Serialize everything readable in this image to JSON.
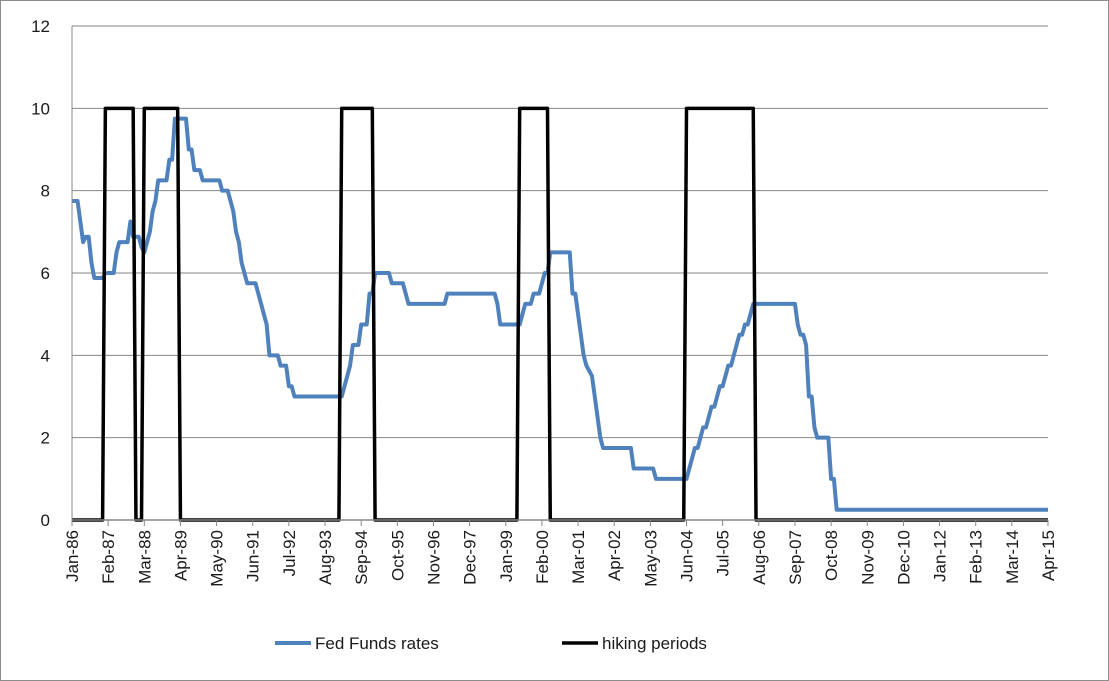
{
  "chart_data": {
    "type": "line",
    "title": "",
    "xlabel": "",
    "ylabel": "",
    "ylim": [
      0,
      12
    ],
    "yticks": [
      0,
      2,
      4,
      6,
      8,
      10,
      12
    ],
    "x_start": "Jan-86",
    "x_end": "Apr-15",
    "xticks": [
      "Jan-86",
      "Feb-87",
      "Mar-88",
      "Apr-89",
      "May-90",
      "Jun-91",
      "Jul-92",
      "Aug-93",
      "Sep-94",
      "Oct-95",
      "Nov-96",
      "Dec-97",
      "Jan-99",
      "Feb-00",
      "Mar-01",
      "Apr-02",
      "May-03",
      "Jun-04",
      "Jul-05",
      "Aug-06",
      "Sep-07",
      "Oct-08",
      "Nov-09",
      "Dec-10",
      "Jan-12",
      "Feb-13",
      "Mar-14",
      "Apr-15"
    ],
    "grid": "horizontal",
    "legend_position": "bottom",
    "series": [
      {
        "name": "Fed Funds rates",
        "color": "#4f81bd",
        "points": [
          [
            "Jan-86",
            7.75
          ],
          [
            "Mar-86",
            7.75
          ],
          [
            "Apr-86",
            7.25
          ],
          [
            "May-86",
            6.75
          ],
          [
            "Jun-86",
            6.88
          ],
          [
            "Jul-86",
            6.88
          ],
          [
            "Aug-86",
            6.25
          ],
          [
            "Sep-86",
            5.88
          ],
          [
            "Dec-86",
            5.88
          ],
          [
            "Jan-87",
            6.0
          ],
          [
            "Apr-87",
            6.0
          ],
          [
            "May-87",
            6.5
          ],
          [
            "Jun-87",
            6.75
          ],
          [
            "Sep-87",
            6.75
          ],
          [
            "Oct-87",
            7.25
          ],
          [
            "Nov-87",
            6.88
          ],
          [
            "Jan-88",
            6.88
          ],
          [
            "Feb-88",
            6.63
          ],
          [
            "Mar-88",
            6.5
          ],
          [
            "Apr-88",
            6.75
          ],
          [
            "May-88",
            7.0
          ],
          [
            "Jun-88",
            7.5
          ],
          [
            "Jul-88",
            7.75
          ],
          [
            "Aug-88",
            8.25
          ],
          [
            "Nov-88",
            8.25
          ],
          [
            "Dec-88",
            8.75
          ],
          [
            "Jan-89",
            8.75
          ],
          [
            "Feb-89",
            9.75
          ],
          [
            "Jun-89",
            9.75
          ],
          [
            "Jul-89",
            9.0
          ],
          [
            "Aug-89",
            9.0
          ],
          [
            "Sep-89",
            8.5
          ],
          [
            "Nov-89",
            8.5
          ],
          [
            "Dec-89",
            8.25
          ],
          [
            "Jun-90",
            8.25
          ],
          [
            "Jul-90",
            8.0
          ],
          [
            "Sep-90",
            8.0
          ],
          [
            "Oct-90",
            7.75
          ],
          [
            "Nov-90",
            7.5
          ],
          [
            "Dec-90",
            7.0
          ],
          [
            "Jan-91",
            6.75
          ],
          [
            "Feb-91",
            6.25
          ],
          [
            "Mar-91",
            6.0
          ],
          [
            "Apr-91",
            5.75
          ],
          [
            "Jul-91",
            5.75
          ],
          [
            "Aug-91",
            5.5
          ],
          [
            "Sep-91",
            5.25
          ],
          [
            "Oct-91",
            5.0
          ],
          [
            "Nov-91",
            4.75
          ],
          [
            "Dec-91",
            4.0
          ],
          [
            "Mar-92",
            4.0
          ],
          [
            "Apr-92",
            3.75
          ],
          [
            "Jun-92",
            3.75
          ],
          [
            "Jul-92",
            3.25
          ],
          [
            "Aug-92",
            3.25
          ],
          [
            "Sep-92",
            3.0
          ],
          [
            "Feb-94",
            3.0
          ],
          [
            "Mar-94",
            3.25
          ],
          [
            "Apr-94",
            3.5
          ],
          [
            "May-94",
            3.75
          ],
          [
            "Jun-94",
            4.25
          ],
          [
            "Aug-94",
            4.25
          ],
          [
            "Sep-94",
            4.75
          ],
          [
            "Nov-94",
            4.75
          ],
          [
            "Dec-94",
            5.5
          ],
          [
            "Jan-95",
            5.5
          ],
          [
            "Feb-95",
            6.0
          ],
          [
            "Jul-95",
            6.0
          ],
          [
            "Aug-95",
            5.75
          ],
          [
            "Dec-95",
            5.75
          ],
          [
            "Jan-96",
            5.5
          ],
          [
            "Feb-96",
            5.25
          ],
          [
            "Mar-97",
            5.25
          ],
          [
            "Apr-97",
            5.5
          ],
          [
            "Sep-98",
            5.5
          ],
          [
            "Oct-98",
            5.25
          ],
          [
            "Nov-98",
            4.75
          ],
          [
            "Jun-99",
            4.75
          ],
          [
            "Jul-99",
            5.0
          ],
          [
            "Aug-99",
            5.25
          ],
          [
            "Oct-99",
            5.25
          ],
          [
            "Nov-99",
            5.5
          ],
          [
            "Jan-00",
            5.5
          ],
          [
            "Feb-00",
            5.75
          ],
          [
            "Mar-00",
            6.0
          ],
          [
            "Apr-00",
            6.0
          ],
          [
            "May-00",
            6.5
          ],
          [
            "Dec-00",
            6.5
          ],
          [
            "Jan-01",
            5.5
          ],
          [
            "Feb-01",
            5.5
          ],
          [
            "Mar-01",
            5.0
          ],
          [
            "Apr-01",
            4.5
          ],
          [
            "May-01",
            4.0
          ],
          [
            "Jun-01",
            3.75
          ],
          [
            "Aug-01",
            3.5
          ],
          [
            "Sep-01",
            3.0
          ],
          [
            "Oct-01",
            2.5
          ],
          [
            "Nov-01",
            2.0
          ],
          [
            "Dec-01",
            1.75
          ],
          [
            "Oct-02",
            1.75
          ],
          [
            "Nov-02",
            1.25
          ],
          [
            "Jun-03",
            1.25
          ],
          [
            "Jul-03",
            1.0
          ],
          [
            "Jun-04",
            1.0
          ],
          [
            "Jul-04",
            1.25
          ],
          [
            "Aug-04",
            1.5
          ],
          [
            "Sep-04",
            1.75
          ],
          [
            "Oct-04",
            1.75
          ],
          [
            "Nov-04",
            2.0
          ],
          [
            "Dec-04",
            2.25
          ],
          [
            "Jan-05",
            2.25
          ],
          [
            "Feb-05",
            2.5
          ],
          [
            "Mar-05",
            2.75
          ],
          [
            "Apr-05",
            2.75
          ],
          [
            "May-05",
            3.0
          ],
          [
            "Jun-05",
            3.25
          ],
          [
            "Jul-05",
            3.25
          ],
          [
            "Aug-05",
            3.5
          ],
          [
            "Sep-05",
            3.75
          ],
          [
            "Oct-05",
            3.75
          ],
          [
            "Nov-05",
            4.0
          ],
          [
            "Dec-05",
            4.25
          ],
          [
            "Jan-06",
            4.5
          ],
          [
            "Feb-06",
            4.5
          ],
          [
            "Mar-06",
            4.75
          ],
          [
            "Apr-06",
            4.75
          ],
          [
            "May-06",
            5.0
          ],
          [
            "Jun-06",
            5.25
          ],
          [
            "Aug-07",
            5.25
          ],
          [
            "Sep-07",
            5.25
          ],
          [
            "Oct-07",
            4.75
          ],
          [
            "Nov-07",
            4.5
          ],
          [
            "Dec-07",
            4.5
          ],
          [
            "Jan-08",
            4.25
          ],
          [
            "Feb-08",
            3.0
          ],
          [
            "Mar-08",
            3.0
          ],
          [
            "Apr-08",
            2.25
          ],
          [
            "May-08",
            2.0
          ],
          [
            "Sep-08",
            2.0
          ],
          [
            "Oct-08",
            1.0
          ],
          [
            "Nov-08",
            1.0
          ],
          [
            "Dec-08",
            0.25
          ],
          [
            "Apr-15",
            0.25
          ]
        ]
      },
      {
        "name": "hiking periods",
        "color": "#000000",
        "points": [
          [
            "Jan-86",
            0
          ],
          [
            "Dec-86",
            0
          ],
          [
            "Jan-87",
            10
          ],
          [
            "Nov-87",
            10
          ],
          [
            "Dec-87",
            0
          ],
          [
            "Feb-88",
            0
          ],
          [
            "Mar-88",
            10
          ],
          [
            "Mar-89",
            10
          ],
          [
            "Apr-89",
            0
          ],
          [
            "Jan-94",
            0
          ],
          [
            "Feb-94",
            10
          ],
          [
            "Jan-95",
            10
          ],
          [
            "Feb-95",
            0
          ],
          [
            "May-99",
            0
          ],
          [
            "Jun-99",
            10
          ],
          [
            "Apr-00",
            10
          ],
          [
            "May-00",
            0
          ],
          [
            "May-04",
            0
          ],
          [
            "Jun-04",
            10
          ],
          [
            "Jun-06",
            10
          ],
          [
            "Jul-06",
            0
          ],
          [
            "Apr-15",
            0
          ]
        ]
      }
    ]
  }
}
